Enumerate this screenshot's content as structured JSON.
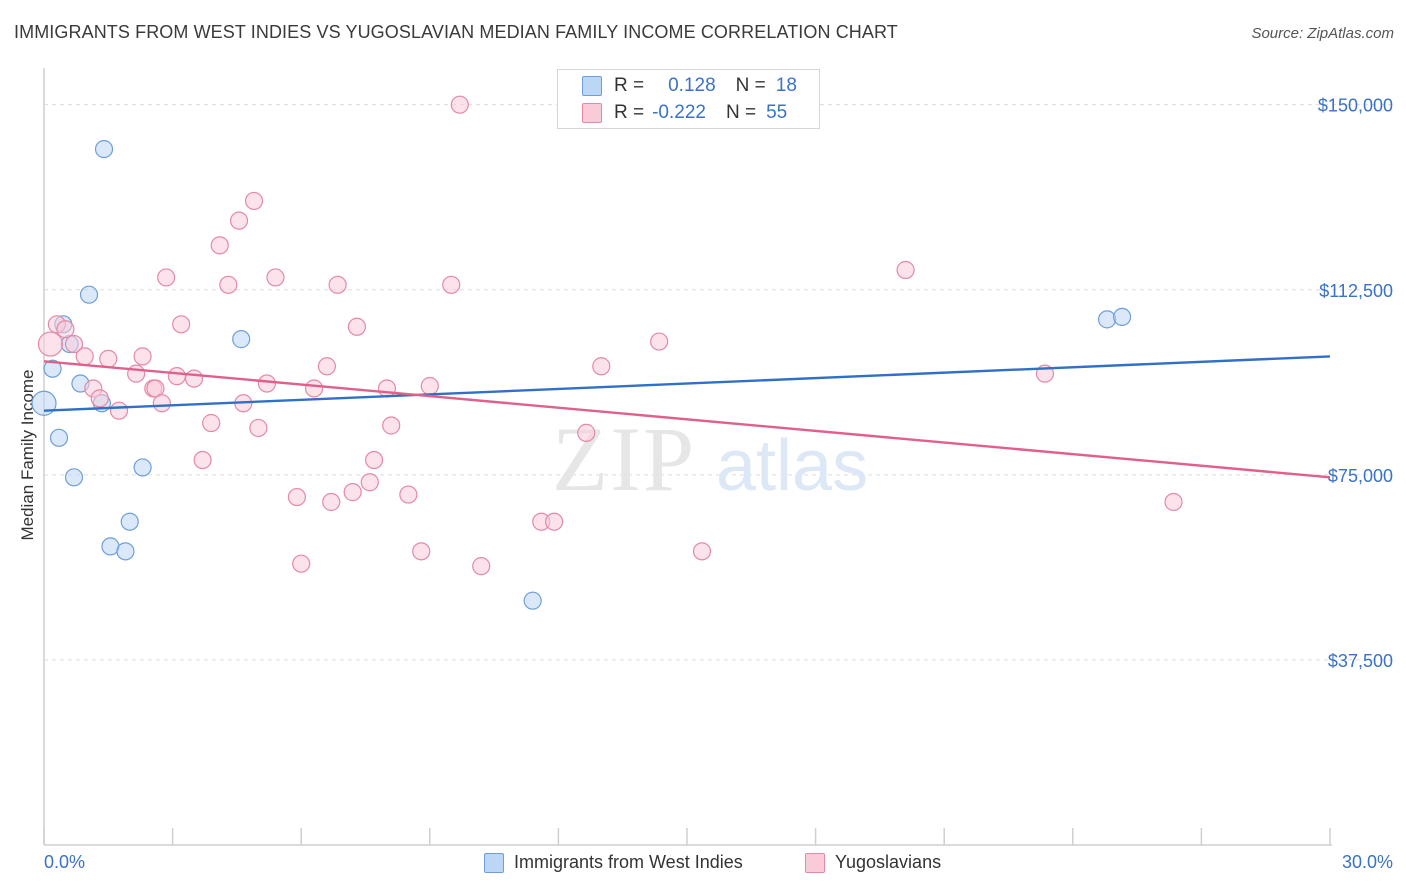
{
  "header": {
    "title": "IMMIGRANTS FROM WEST INDIES VS YUGOSLAVIAN MEDIAN FAMILY INCOME CORRELATION CHART",
    "source": "Source: ZipAtlas.com"
  },
  "watermark": {
    "zip": "ZIP",
    "atlas": "atlas"
  },
  "correlation_legend": {
    "rows": [
      {
        "r_label": "R =",
        "r_value": "0.128",
        "n_label": "N =",
        "n_value": "18",
        "color": "#a9c9f0",
        "border": "#6f9fd8"
      },
      {
        "r_label": "R =",
        "r_value": "-0.222",
        "n_label": "N =",
        "n_value": "55",
        "color": "#f7bfd0",
        "border": "#e48aa6"
      }
    ]
  },
  "bottom_legend": {
    "items": [
      {
        "label": "Immigrants from West Indies",
        "color": "#bcd6f5",
        "border": "#6f9fd8"
      },
      {
        "label": "Yugoslavians",
        "color": "#f9cbd9",
        "border": "#e48aa6"
      }
    ]
  },
  "chart_data": {
    "type": "scatter",
    "title": "IMMIGRANTS FROM WEST INDIES VS YUGOSLAVIAN MEDIAN FAMILY INCOME CORRELATION CHART",
    "xlabel": "",
    "ylabel": "Median Family Income",
    "xlim": [
      0,
      30
    ],
    "ylim": [
      0,
      155000
    ],
    "x_tick_labels": [
      "0.0%",
      "30.0%"
    ],
    "y_ticks": [
      37500,
      75000,
      112500,
      150000
    ],
    "y_tick_labels": [
      "$37,500",
      "$75,000",
      "$112,500",
      "$150,000"
    ],
    "grid": "horizontal dashed",
    "series": [
      {
        "name": "Immigrants from West Indies",
        "color": "#6f9fd8",
        "fill": "#bcd6f5",
        "points": [
          [
            0.0,
            89500
          ],
          [
            0.2,
            96500
          ],
          [
            0.35,
            82500
          ],
          [
            0.45,
            105500
          ],
          [
            0.6,
            101500
          ],
          [
            0.7,
            74500
          ],
          [
            0.85,
            93500
          ],
          [
            1.05,
            111500
          ],
          [
            1.35,
            89500
          ],
          [
            1.4,
            141000
          ],
          [
            1.55,
            60500
          ],
          [
            1.9,
            59500
          ],
          [
            2.0,
            65500
          ],
          [
            2.3,
            76500
          ],
          [
            4.6,
            102500
          ],
          [
            11.4,
            49500
          ],
          [
            24.8,
            106500
          ],
          [
            25.15,
            107000
          ]
        ],
        "trend": {
          "x": [
            0,
            30
          ],
          "y": [
            88000,
            99000
          ],
          "color": "#3070c8"
        }
      },
      {
        "name": "Yugoslavians",
        "color": "#e48aa6",
        "fill": "#f9cbd9",
        "points": [
          [
            0.15,
            101500
          ],
          [
            0.3,
            105500
          ],
          [
            0.5,
            104500
          ],
          [
            0.7,
            101500
          ],
          [
            0.95,
            99000
          ],
          [
            1.15,
            92500
          ],
          [
            1.3,
            90500
          ],
          [
            1.5,
            98500
          ],
          [
            1.75,
            88000
          ],
          [
            2.15,
            95500
          ],
          [
            2.3,
            99000
          ],
          [
            2.55,
            92500
          ],
          [
            2.6,
            92500
          ],
          [
            2.75,
            89500
          ],
          [
            2.85,
            115000
          ],
          [
            3.1,
            95000
          ],
          [
            3.2,
            105500
          ],
          [
            3.5,
            94500
          ],
          [
            3.7,
            78000
          ],
          [
            3.9,
            85500
          ],
          [
            4.1,
            121500
          ],
          [
            4.3,
            113500
          ],
          [
            4.55,
            126500
          ],
          [
            4.65,
            89500
          ],
          [
            4.9,
            130500
          ],
          [
            5.0,
            84500
          ],
          [
            5.2,
            93500
          ],
          [
            5.4,
            115000
          ],
          [
            5.9,
            70500
          ],
          [
            6.0,
            57000
          ],
          [
            6.3,
            92500
          ],
          [
            6.6,
            97000
          ],
          [
            6.7,
            69500
          ],
          [
            6.85,
            113500
          ],
          [
            7.2,
            71500
          ],
          [
            7.3,
            105000
          ],
          [
            7.6,
            73500
          ],
          [
            7.7,
            78000
          ],
          [
            8.0,
            92500
          ],
          [
            8.1,
            85000
          ],
          [
            8.5,
            71000
          ],
          [
            8.8,
            59500
          ],
          [
            9.0,
            93000
          ],
          [
            9.5,
            113500
          ],
          [
            9.7,
            150000
          ],
          [
            10.2,
            56500
          ],
          [
            11.6,
            65500
          ],
          [
            11.9,
            65500
          ],
          [
            12.65,
            83500
          ],
          [
            13.0,
            97000
          ],
          [
            14.35,
            102000
          ],
          [
            15.35,
            59500
          ],
          [
            20.1,
            116500
          ],
          [
            23.35,
            95500
          ],
          [
            26.35,
            69500
          ]
        ],
        "trend": {
          "x": [
            0,
            30
          ],
          "y": [
            98000,
            74500
          ],
          "color": "#e0608a"
        }
      }
    ]
  }
}
